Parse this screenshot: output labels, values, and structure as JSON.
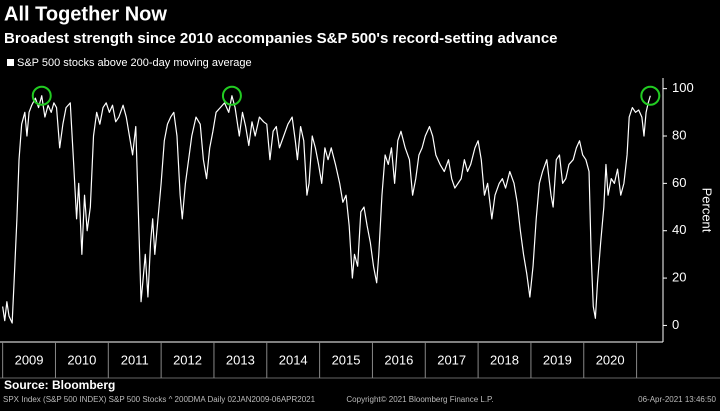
{
  "chart_data": {
    "type": "line",
    "title": "All Together Now",
    "subtitle": "Broadest strength since 2010 accompanies S&P 500's record-setting advance",
    "y_label": "Percent",
    "source": "Source: Bloomberg",
    "footer": {
      "left": "SPX Index (S&P 500 INDEX) S&P 500 Stocks ^ 200DMA  Daily 02JAN2009-06APR2021",
      "center": "Copyright© 2021 Bloomberg Finance L.P.",
      "right": "06-Apr-2021 13:46:50"
    },
    "legend_position": "top-left",
    "xlim": [
      2008.95,
      2021.5
    ],
    "xticks": [
      {
        "value": 2009,
        "label": "2009"
      },
      {
        "value": 2010,
        "label": "2010"
      },
      {
        "value": 2011,
        "label": "2011"
      },
      {
        "value": 2012,
        "label": "2012"
      },
      {
        "value": 2013,
        "label": "2013"
      },
      {
        "value": 2014,
        "label": "2014"
      },
      {
        "value": 2015,
        "label": "2015"
      },
      {
        "value": 2016,
        "label": "2016"
      },
      {
        "value": 2017,
        "label": "2017"
      },
      {
        "value": 2018,
        "label": "2018"
      },
      {
        "value": 2019,
        "label": "2019"
      },
      {
        "value": 2020,
        "label": "2020"
      },
      {
        "value": 2021,
        "label": null
      }
    ],
    "ylim": [
      -7,
      104.5
    ],
    "yticks": [
      0,
      20,
      40,
      60,
      80,
      100
    ],
    "x": [
      2009.0,
      2009.04,
      2009.08,
      2009.12,
      2009.18,
      2009.22,
      2009.27,
      2009.31,
      2009.36,
      2009.42,
      2009.46,
      2009.5,
      2009.55,
      2009.62,
      2009.68,
      2009.74,
      2009.8,
      2009.86,
      2009.92,
      2009.97,
      2010.02,
      2010.08,
      2010.14,
      2010.2,
      2010.28,
      2010.34,
      2010.4,
      2010.44,
      2010.5,
      2010.55,
      2010.6,
      2010.66,
      2010.72,
      2010.78,
      2010.84,
      2010.9,
      2010.96,
      2011.02,
      2011.08,
      2011.14,
      2011.2,
      2011.28,
      2011.34,
      2011.4,
      2011.46,
      2011.52,
      2011.58,
      2011.62,
      2011.66,
      2011.7,
      2011.75,
      2011.8,
      2011.84,
      2011.88,
      2011.94,
      2012.0,
      2012.06,
      2012.12,
      2012.18,
      2012.24,
      2012.3,
      2012.36,
      2012.4,
      2012.46,
      2012.52,
      2012.58,
      2012.66,
      2012.74,
      2012.8,
      2012.86,
      2012.92,
      2012.98,
      2013.04,
      2013.12,
      2013.2,
      2013.28,
      2013.34,
      2013.4,
      2013.48,
      2013.54,
      2013.6,
      2013.66,
      2013.72,
      2013.78,
      2013.86,
      2013.94,
      2014.0,
      2014.06,
      2014.12,
      2014.18,
      2014.24,
      2014.32,
      2014.4,
      2014.48,
      2014.54,
      2014.58,
      2014.64,
      2014.7,
      2014.76,
      2014.8,
      2014.86,
      2014.92,
      2014.98,
      2015.04,
      2015.1,
      2015.16,
      2015.22,
      2015.3,
      2015.38,
      2015.44,
      2015.5,
      2015.56,
      2015.62,
      2015.66,
      2015.72,
      2015.78,
      2015.84,
      2015.9,
      2015.96,
      2016.02,
      2016.08,
      2016.12,
      2016.18,
      2016.24,
      2016.3,
      2016.36,
      2016.42,
      2016.48,
      2016.54,
      2016.62,
      2016.7,
      2016.76,
      2016.82,
      2016.88,
      2016.94,
      2017.0,
      2017.08,
      2017.14,
      2017.2,
      2017.28,
      2017.36,
      2017.44,
      2017.5,
      2017.56,
      2017.62,
      2017.68,
      2017.74,
      2017.8,
      2017.86,
      2017.94,
      2018.0,
      2018.06,
      2018.12,
      2018.18,
      2018.26,
      2018.32,
      2018.4,
      2018.46,
      2018.52,
      2018.6,
      2018.68,
      2018.74,
      2018.8,
      2018.86,
      2018.92,
      2018.98,
      2019.04,
      2019.1,
      2019.16,
      2019.22,
      2019.3,
      2019.38,
      2019.42,
      2019.48,
      2019.54,
      2019.6,
      2019.66,
      2019.72,
      2019.8,
      2019.86,
      2019.92,
      2019.98,
      2020.04,
      2020.1,
      2020.14,
      2020.18,
      2020.22,
      2020.26,
      2020.32,
      2020.38,
      2020.42,
      2020.46,
      2020.52,
      2020.58,
      2020.64,
      2020.7,
      2020.76,
      2020.82,
      2020.86,
      2020.92,
      2020.98,
      2021.04,
      2021.1,
      2021.14,
      2021.18,
      2021.22,
      2021.26
    ],
    "series": [
      {
        "name": "S&P 500 stocks above 200-day moving average",
        "color": "#ffffff",
        "values": [
          8,
          2,
          10,
          4,
          1,
          20,
          45,
          70,
          85,
          90,
          80,
          90,
          93,
          96,
          92,
          97,
          88,
          93,
          90,
          94,
          92,
          75,
          85,
          92,
          94,
          70,
          45,
          60,
          30,
          55,
          40,
          50,
          80,
          90,
          85,
          92,
          94,
          90,
          93,
          86,
          88,
          93,
          88,
          80,
          72,
          84,
          40,
          10,
          20,
          30,
          12,
          35,
          45,
          30,
          45,
          60,
          78,
          85,
          88,
          90,
          80,
          55,
          45,
          60,
          70,
          80,
          88,
          85,
          70,
          62,
          75,
          82,
          90,
          92,
          94,
          90,
          97,
          92,
          80,
          90,
          84,
          76,
          86,
          80,
          88,
          86,
          85,
          70,
          82,
          84,
          75,
          80,
          85,
          88,
          78,
          70,
          84,
          78,
          55,
          60,
          80,
          75,
          68,
          60,
          75,
          70,
          75,
          68,
          60,
          52,
          55,
          42,
          20,
          30,
          25,
          48,
          50,
          42,
          35,
          25,
          18,
          30,
          55,
          72,
          68,
          75,
          60,
          78,
          82,
          75,
          70,
          55,
          62,
          72,
          75,
          80,
          84,
          80,
          72,
          68,
          65,
          70,
          62,
          58,
          60,
          62,
          70,
          65,
          68,
          75,
          78,
          70,
          55,
          60,
          45,
          55,
          60,
          62,
          58,
          65,
          60,
          52,
          40,
          30,
          22,
          12,
          25,
          45,
          60,
          65,
          70,
          55,
          50,
          70,
          72,
          60,
          62,
          68,
          70,
          75,
          78,
          72,
          70,
          65,
          30,
          8,
          3,
          18,
          35,
          50,
          68,
          55,
          62,
          60,
          66,
          55,
          60,
          72,
          88,
          92,
          90,
          91,
          88,
          80,
          90,
          94,
          97
        ]
      }
    ],
    "highlights": {
      "x": [
        2009.74,
        2013.34,
        2021.26
      ],
      "y": [
        97,
        97,
        97
      ],
      "color": "#22cc22"
    }
  }
}
